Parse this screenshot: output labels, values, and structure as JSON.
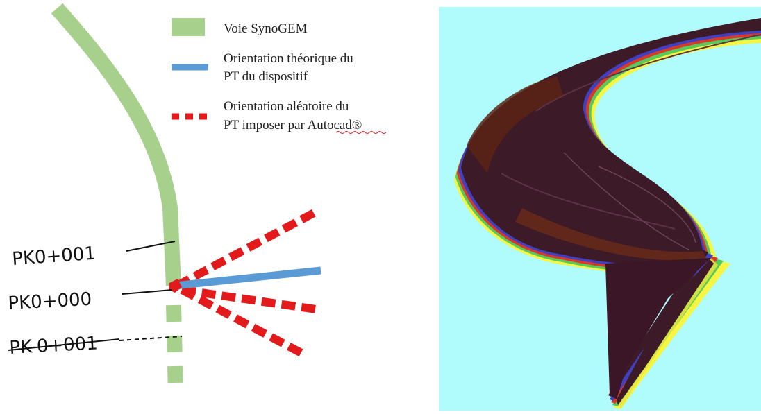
{
  "legend": {
    "items": [
      {
        "label_lines": [
          "Voie SynoGEM"
        ],
        "color": "#a8d08d",
        "style": "solid-block"
      },
      {
        "label_lines": [
          "Orientation théorique du",
          "PT du dispositif"
        ],
        "color": "#5b9bd5",
        "style": "solid-line"
      },
      {
        "label_lines": [
          "Orientation aléatoire du",
          "PT imposer par Autocad®"
        ],
        "color": "#e31a1c",
        "style": "dashed-line"
      }
    ]
  },
  "markers": {
    "pk_plus_1": "PK0+001",
    "pk_zero": "PK0+000",
    "pk_minus_1": "PK-0+001"
  },
  "colors": {
    "track": "#a8d08d",
    "theoretical": "#5b9bd5",
    "random": "#e31a1c",
    "render_background": "#b0fcfc",
    "surface_main": "#3d1a28"
  }
}
